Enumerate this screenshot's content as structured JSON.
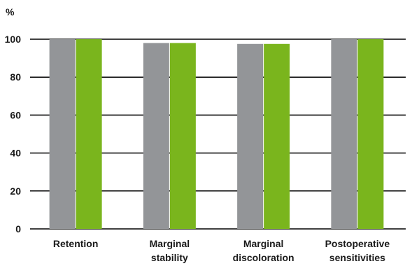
{
  "chart_data": {
    "type": "bar",
    "ylabel": "%",
    "ylim": [
      0,
      100
    ],
    "yticks": [
      0,
      20,
      40,
      60,
      80,
      100
    ],
    "grid": true,
    "categories": [
      [
        "Retention"
      ],
      [
        "Marginal",
        "stability"
      ],
      [
        "Marginal",
        "discoloration"
      ],
      [
        "Postoperative",
        "sensitivities"
      ]
    ],
    "series": [
      {
        "color": "#939598",
        "values": [
          100,
          98,
          97.5,
          100
        ]
      },
      {
        "color": "#7ab51d",
        "values": [
          100,
          98,
          97.5,
          100
        ]
      }
    ]
  }
}
